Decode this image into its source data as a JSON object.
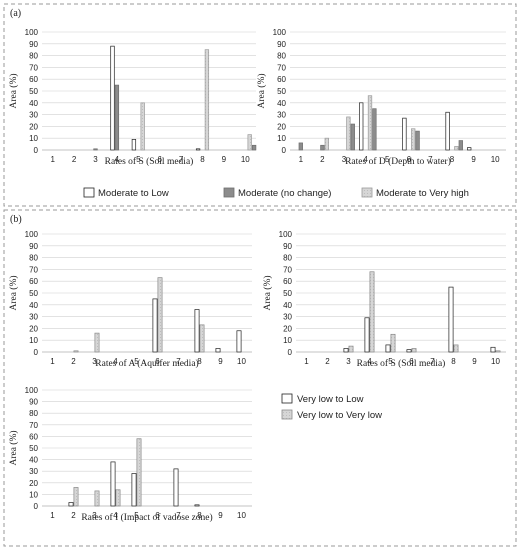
{
  "panels": [
    {
      "label": "(a)"
    },
    {
      "label": "(b)"
    }
  ],
  "legends": [
    {
      "entries": [
        "Moderate to Low",
        "Moderate (no change)",
        "Moderate to Very high"
      ]
    },
    {
      "entries": [
        "Very low to Low",
        "Very low to Very low"
      ]
    }
  ],
  "chart_data": [
    {
      "type": "bar",
      "categories": [
        "1",
        "2",
        "3",
        "4",
        "5",
        "6",
        "7",
        "8",
        "9",
        "10"
      ],
      "xlabel": "Rates of S (Soil media)",
      "ylabel": "Area (%)",
      "ylim": [
        0,
        100
      ],
      "yticks": [
        0,
        10,
        20,
        30,
        40,
        50,
        60,
        70,
        80,
        90,
        100
      ],
      "series": [
        {
          "name": "Moderate to Low",
          "values": [
            0,
            0,
            0,
            88,
            9,
            0,
            0,
            1,
            0,
            0
          ]
        },
        {
          "name": "Moderate (no change)",
          "values": [
            0,
            0,
            1,
            55,
            0,
            0,
            0,
            0,
            0,
            0
          ]
        },
        {
          "name": "Moderate to Very high",
          "values": [
            0,
            0,
            0,
            0,
            40,
            0,
            0,
            85,
            0,
            13
          ]
        }
      ],
      "extra": [
        {
          "category": "10",
          "value": 4
        }
      ]
    },
    {
      "type": "bar",
      "categories": [
        "1",
        "2",
        "3",
        "4",
        "5",
        "6",
        "7",
        "8",
        "9",
        "10"
      ],
      "xlabel": "Rates of D (Depth to water)",
      "ylabel": "Area (%)",
      "ylim": [
        0,
        100
      ],
      "yticks": [
        0,
        10,
        20,
        30,
        40,
        50,
        60,
        70,
        80,
        90,
        100
      ],
      "series": [
        {
          "name": "Moderate to Low",
          "values": [
            0,
            0,
            0,
            40,
            0,
            27,
            0,
            32,
            2,
            0
          ]
        },
        {
          "name": "Moderate (no change)",
          "values": [
            6,
            4,
            0,
            0,
            0,
            0,
            0,
            0,
            0,
            0
          ]
        },
        {
          "name": "Moderate to Very high",
          "values": [
            0,
            10,
            28,
            46,
            0,
            18,
            0,
            3,
            0,
            0
          ]
        }
      ],
      "extra": [
        {
          "category": "3",
          "value": 22
        },
        {
          "category": "4",
          "value": 35
        },
        {
          "category": "6",
          "value": 16
        },
        {
          "category": "8",
          "value": 8
        }
      ]
    },
    {
      "type": "bar",
      "categories": [
        "1",
        "2",
        "3",
        "4",
        "5",
        "6",
        "7",
        "8",
        "9",
        "10"
      ],
      "xlabel": "Rates of A (Aquifer media)",
      "ylabel": "Area (%)",
      "ylim": [
        0,
        100
      ],
      "yticks": [
        0,
        10,
        20,
        30,
        40,
        50,
        60,
        70,
        80,
        90,
        100
      ],
      "series": [
        {
          "name": "Very low to Low",
          "values": [
            0,
            0,
            0,
            0,
            0,
            45,
            0,
            36,
            3,
            18
          ]
        },
        {
          "name": "Very low to Very low",
          "values": [
            0,
            1,
            16,
            0,
            0,
            63,
            0,
            23,
            0,
            0
          ]
        }
      ]
    },
    {
      "type": "bar",
      "categories": [
        "1",
        "2",
        "3",
        "4",
        "5",
        "6",
        "7",
        "8",
        "9",
        "10"
      ],
      "xlabel": "Rates of S (Soil media)",
      "ylabel": "Area (%)",
      "ylim": [
        0,
        100
      ],
      "yticks": [
        0,
        10,
        20,
        30,
        40,
        50,
        60,
        70,
        80,
        90,
        100
      ],
      "series": [
        {
          "name": "Very low to Low",
          "values": [
            0,
            0,
            3,
            29,
            6,
            2,
            0,
            55,
            0,
            4
          ]
        },
        {
          "name": "Very low to Very low",
          "values": [
            0,
            0,
            5,
            68,
            15,
            3,
            0,
            6,
            0,
            1
          ]
        }
      ]
    },
    {
      "type": "bar",
      "categories": [
        "1",
        "2",
        "3",
        "4",
        "5",
        "6",
        "7",
        "8",
        "9",
        "10"
      ],
      "xlabel": "Rates of I (Impact of vadose zone)",
      "ylabel": "Area (%)",
      "ylim": [
        0,
        100
      ],
      "yticks": [
        0,
        10,
        20,
        30,
        40,
        50,
        60,
        70,
        80,
        90,
        100
      ],
      "series": [
        {
          "name": "Very low to Low",
          "values": [
            0,
            3,
            0,
            38,
            28,
            0,
            32,
            1,
            0,
            0
          ]
        },
        {
          "name": "Very low to Very low",
          "values": [
            0,
            16,
            13,
            14,
            58,
            0,
            0,
            0,
            0,
            0
          ]
        }
      ]
    }
  ],
  "colors": {
    "outline": "#222222",
    "white_fill": "#ffffff",
    "dark_gray": "#8c8c8c",
    "light_gray": "#d6d6d6",
    "grid": "#d0d0d0",
    "frame": "#9a9a9a"
  }
}
